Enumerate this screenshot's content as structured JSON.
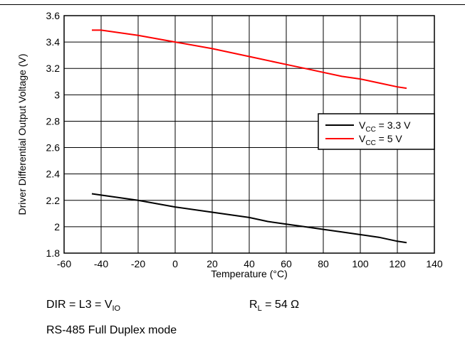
{
  "chart_data": {
    "type": "line",
    "xlabel": "Temperature (°C)",
    "ylabel": "Driver Differential Output Voltage (V)",
    "xlim": [
      -60,
      140
    ],
    "ylim": [
      1.8,
      3.6
    ],
    "xticks": [
      -60,
      -40,
      -20,
      0,
      20,
      40,
      60,
      80,
      100,
      120,
      140
    ],
    "yticks": [
      1.8,
      2,
      2.2,
      2.4,
      2.6,
      2.8,
      3,
      3.2,
      3.4,
      3.6
    ],
    "xtick_labels": [
      "-60",
      "-40",
      "-20",
      "0",
      "20",
      "40",
      "60",
      "80",
      "100",
      "120",
      "140"
    ],
    "ytick_labels": [
      "1.8",
      "2",
      "2.2",
      "2.4",
      "2.6",
      "2.8",
      "3",
      "3.2",
      "3.4",
      "3.6"
    ],
    "grid": true,
    "legend_position": "right-middle",
    "series": [
      {
        "name_main": "V",
        "name_sub": "CC",
        "name_rest": " = 3.3 V",
        "color": "#000000",
        "x": [
          -45,
          -40,
          -20,
          0,
          20,
          40,
          50,
          60,
          70,
          80,
          90,
          100,
          110,
          120,
          125
        ],
        "y": [
          2.25,
          2.24,
          2.2,
          2.15,
          2.11,
          2.07,
          2.04,
          2.02,
          2.0,
          1.98,
          1.96,
          1.94,
          1.92,
          1.89,
          1.88
        ]
      },
      {
        "name_main": "V",
        "name_sub": "CC",
        "name_rest": " = 5 V",
        "color": "#ff0000",
        "x": [
          -45,
          -40,
          -20,
          0,
          20,
          40,
          60,
          70,
          80,
          90,
          100,
          110,
          120,
          125
        ],
        "y": [
          3.49,
          3.49,
          3.45,
          3.4,
          3.35,
          3.29,
          3.23,
          3.2,
          3.17,
          3.14,
          3.12,
          3.09,
          3.06,
          3.05
        ]
      }
    ]
  },
  "notes": {
    "dir_main": "DIR = L3 = V",
    "dir_sub": "IO",
    "rl_main": "R",
    "rl_sub": "L",
    "rl_rest": " = 54 Ω",
    "mode": "RS-485 Full Duplex mode"
  }
}
